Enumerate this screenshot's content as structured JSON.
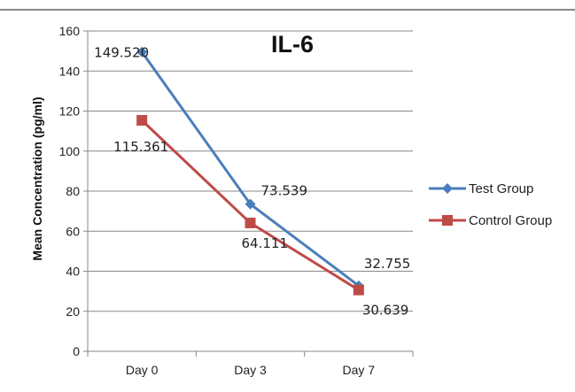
{
  "chart_data": {
    "type": "line",
    "title": "IL-6",
    "xlabel": "",
    "ylabel": "Mean Concentration (pg/ml)",
    "categories": [
      "Day 0",
      "Day 3",
      "Day 7"
    ],
    "ylim": [
      0,
      160
    ],
    "yticks": [
      "0",
      "20",
      "40",
      "60",
      "80",
      "100",
      "120",
      "140",
      "160"
    ],
    "grid": true,
    "legend_position": "right",
    "series": [
      {
        "name": "Test Group",
        "values": [
          149.52,
          73.539,
          32.755
        ],
        "labels": [
          "149.520",
          "73.539",
          "32.755"
        ],
        "color": "#4a7ebb",
        "marker": "diamond"
      },
      {
        "name": "Control Group",
        "values": [
          115.361,
          64.111,
          30.639
        ],
        "labels": [
          "115.361",
          "64.111",
          "30.639"
        ],
        "color": "#be4b48",
        "marker": "square"
      }
    ]
  }
}
